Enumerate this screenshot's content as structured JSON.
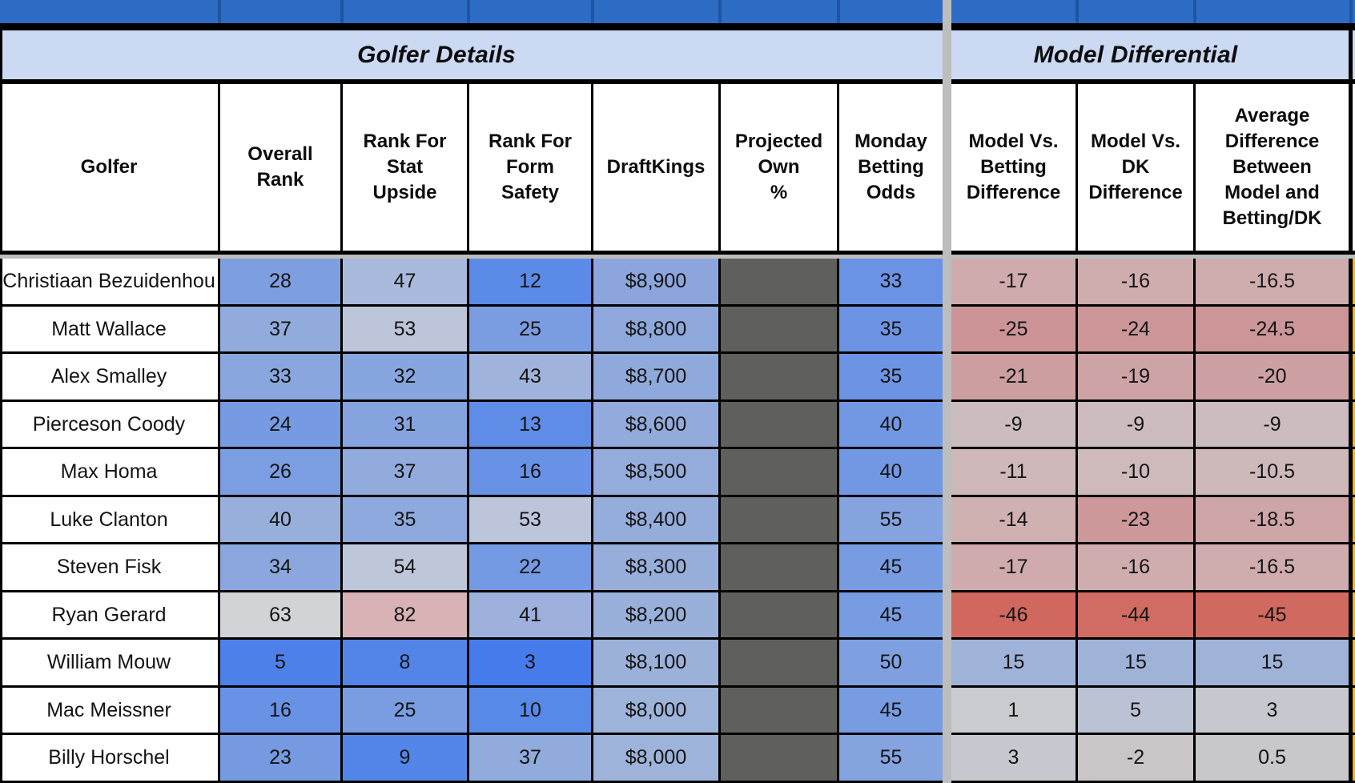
{
  "sections": {
    "left": "Golfer Details",
    "right": "Model Differential"
  },
  "columns": [
    {
      "id": "golfer",
      "label": "Golfer"
    },
    {
      "id": "overall_rank",
      "label": "Overall\nRank"
    },
    {
      "id": "stat_upside",
      "label": "Rank For\nStat\nUpside"
    },
    {
      "id": "form_safety",
      "label": "Rank For\nForm\nSafety"
    },
    {
      "id": "draftkings",
      "label": "DraftKings"
    },
    {
      "id": "projected_own",
      "label": "Projected\nOwn\n%"
    },
    {
      "id": "betting_odds",
      "label": "Monday\nBetting\nOdds"
    },
    {
      "id": "model_vs_betting",
      "label": "Model Vs.\nBetting\nDifference"
    },
    {
      "id": "model_vs_dk",
      "label": "Model Vs.\nDK\nDifference"
    },
    {
      "id": "avg_diff",
      "label": "Average\nDifference\nBetween\nModel and\nBetting/DK"
    }
  ],
  "colors": {
    "top_bar": "#2d6cc4",
    "top_bar_seam": "#1f55a0",
    "section_band": "#ccd9f3",
    "pane_divider": "#bdbdbd",
    "hidden_column": "#5f5f5b",
    "next_column_accent": "#eab33f",
    "gridline": "#000000"
  },
  "rows": [
    {
      "golfer": "Christiaan Bezuidenhou",
      "cells": [
        {
          "v": "28",
          "bg": "#7e9fdf"
        },
        {
          "v": "47",
          "bg": "#a9badd"
        },
        {
          "v": "12",
          "bg": "#5c8be7"
        },
        {
          "v": "$8,900",
          "bg": "#8ca6dd"
        },
        {
          "v": "",
          "bg": "#5f5f5b"
        },
        {
          "v": "33",
          "bg": "#6a92e5"
        },
        {
          "v": "-17",
          "bg": "#cfabad"
        },
        {
          "v": "-16",
          "bg": "#cfadaf"
        },
        {
          "v": "-16.5",
          "bg": "#cfacae"
        }
      ]
    },
    {
      "golfer": "Matt Wallace",
      "cells": [
        {
          "v": "37",
          "bg": "#91abdc"
        },
        {
          "v": "53",
          "bg": "#bcc5da"
        },
        {
          "v": "25",
          "bg": "#7a9de1"
        },
        {
          "v": "$8,800",
          "bg": "#8ea8dc"
        },
        {
          "v": "",
          "bg": "#5f5f5b"
        },
        {
          "v": "35",
          "bg": "#6d94e4"
        },
        {
          "v": "-25",
          "bg": "#cc9496"
        },
        {
          "v": "-24",
          "bg": "#cc9698"
        },
        {
          "v": "-24.5",
          "bg": "#cc9597"
        }
      ]
    },
    {
      "golfer": "Alex Smalley",
      "cells": [
        {
          "v": "33",
          "bg": "#89a6de"
        },
        {
          "v": "32",
          "bg": "#87a5df"
        },
        {
          "v": "43",
          "bg": "#a0b3dc"
        },
        {
          "v": "$8,700",
          "bg": "#90a9dc"
        },
        {
          "v": "",
          "bg": "#5f5f5b"
        },
        {
          "v": "35",
          "bg": "#6d94e4"
        },
        {
          "v": "-21",
          "bg": "#cd9ea0"
        },
        {
          "v": "-19",
          "bg": "#cda3a5"
        },
        {
          "v": "-20",
          "bg": "#cda1a3"
        }
      ]
    },
    {
      "golfer": "Pierceson Coody",
      "cells": [
        {
          "v": "24",
          "bg": "#779be2"
        },
        {
          "v": "31",
          "bg": "#85a3df"
        },
        {
          "v": "13",
          "bg": "#5e8ce6"
        },
        {
          "v": "$8,600",
          "bg": "#92aadc"
        },
        {
          "v": "",
          "bg": "#5f5f5b"
        },
        {
          "v": "40",
          "bg": "#7298e3"
        },
        {
          "v": "-9",
          "bg": "#cdbcbd"
        },
        {
          "v": "-9",
          "bg": "#cdbcbd"
        },
        {
          "v": "-9",
          "bg": "#cdbcbd"
        }
      ]
    },
    {
      "golfer": "Max Homa",
      "cells": [
        {
          "v": "26",
          "bg": "#7b9de1"
        },
        {
          "v": "37",
          "bg": "#91abdc"
        },
        {
          "v": "16",
          "bg": "#6892e5"
        },
        {
          "v": "$8,500",
          "bg": "#94acdb"
        },
        {
          "v": "",
          "bg": "#5f5f5b"
        },
        {
          "v": "40",
          "bg": "#7298e3"
        },
        {
          "v": "-11",
          "bg": "#ceb8b9"
        },
        {
          "v": "-10",
          "bg": "#cebabb"
        },
        {
          "v": "-10.5",
          "bg": "#ceb9ba"
        }
      ]
    },
    {
      "golfer": "Luke Clanton",
      "cells": [
        {
          "v": "40",
          "bg": "#98afdb"
        },
        {
          "v": "35",
          "bg": "#8da9dd"
        },
        {
          "v": "53",
          "bg": "#bcc5da"
        },
        {
          "v": "$8,400",
          "bg": "#95addb"
        },
        {
          "v": "",
          "bg": "#5f5f5b"
        },
        {
          "v": "55",
          "bg": "#84a3df"
        },
        {
          "v": "-14",
          "bg": "#cfb1b2"
        },
        {
          "v": "-23",
          "bg": "#cd989a"
        },
        {
          "v": "-18.5",
          "bg": "#cea6a8"
        }
      ]
    },
    {
      "golfer": "Steven Fisk",
      "cells": [
        {
          "v": "34",
          "bg": "#8ba7dd"
        },
        {
          "v": "54",
          "bg": "#bec6d9"
        },
        {
          "v": "22",
          "bg": "#739ae3"
        },
        {
          "v": "$8,300",
          "bg": "#97aedb"
        },
        {
          "v": "",
          "bg": "#5f5f5b"
        },
        {
          "v": "45",
          "bg": "#789ce2"
        },
        {
          "v": "-17",
          "bg": "#cfabad"
        },
        {
          "v": "-16",
          "bg": "#cfadaf"
        },
        {
          "v": "-16.5",
          "bg": "#cfacae"
        }
      ]
    },
    {
      "golfer": "Ryan Gerard",
      "cells": [
        {
          "v": "63",
          "bg": "#d2d3d6"
        },
        {
          "v": "82",
          "bg": "#d8b2b4"
        },
        {
          "v": "41",
          "bg": "#9db1dc"
        },
        {
          "v": "$8,200",
          "bg": "#99b0da"
        },
        {
          "v": "",
          "bg": "#5f5f5b"
        },
        {
          "v": "45",
          "bg": "#789ce2"
        },
        {
          "v": "-46",
          "bg": "#d0685f"
        },
        {
          "v": "-44",
          "bg": "#d06c63"
        },
        {
          "v": "-45",
          "bg": "#d06a61"
        }
      ]
    },
    {
      "golfer": "William Mouw",
      "cells": [
        {
          "v": "5",
          "bg": "#4e80ea"
        },
        {
          "v": "8",
          "bg": "#5385e9"
        },
        {
          "v": "3",
          "bg": "#467bec"
        },
        {
          "v": "$8,100",
          "bg": "#9bb1da"
        },
        {
          "v": "",
          "bg": "#5f5f5b"
        },
        {
          "v": "50",
          "bg": "#7ea0e0"
        },
        {
          "v": "15",
          "bg": "#9fb3d8"
        },
        {
          "v": "15",
          "bg": "#9fb3d8"
        },
        {
          "v": "15",
          "bg": "#9fb3d8"
        }
      ]
    },
    {
      "golfer": "Mac Meissner",
      "cells": [
        {
          "v": "16",
          "bg": "#6892e5"
        },
        {
          "v": "25",
          "bg": "#7a9de1"
        },
        {
          "v": "10",
          "bg": "#578ae8"
        },
        {
          "v": "$8,000",
          "bg": "#9db3da"
        },
        {
          "v": "",
          "bg": "#5f5f5b"
        },
        {
          "v": "45",
          "bg": "#789ce2"
        },
        {
          "v": "1",
          "bg": "#c9cbd0"
        },
        {
          "v": "5",
          "bg": "#bac2d3"
        },
        {
          "v": "3",
          "bg": "#c5c9cf"
        }
      ]
    },
    {
      "golfer": "Billy Horschel",
      "cells": [
        {
          "v": "23",
          "bg": "#759ae2"
        },
        {
          "v": "9",
          "bg": "#5486e9"
        },
        {
          "v": "37",
          "bg": "#91abdc"
        },
        {
          "v": "$8,000",
          "bg": "#9db3da"
        },
        {
          "v": "",
          "bg": "#5f5f5b"
        },
        {
          "v": "55",
          "bg": "#84a3df"
        },
        {
          "v": "3",
          "bg": "#c5c9cf"
        },
        {
          "v": "-2",
          "bg": "#cac6c8"
        },
        {
          "v": "0.5",
          "bg": "#c8c8cb"
        }
      ]
    }
  ]
}
